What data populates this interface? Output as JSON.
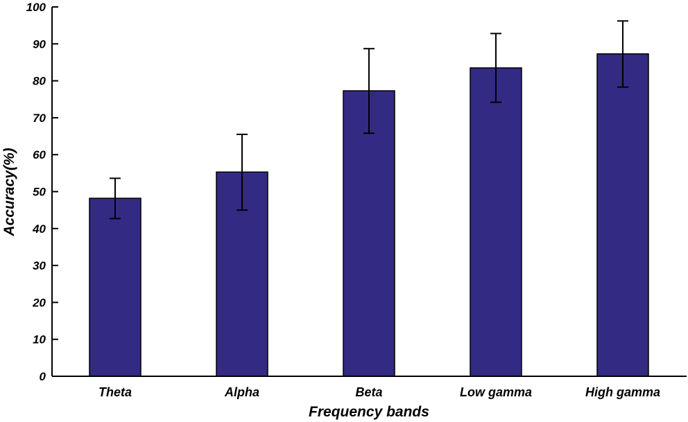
{
  "chart_data": {
    "type": "bar",
    "xlabel": "Frequency bands",
    "ylabel": "Accuracy(%)",
    "ylim": [
      0,
      100
    ],
    "yticks": [
      0,
      10,
      20,
      30,
      40,
      50,
      60,
      70,
      80,
      90,
      100
    ],
    "categories": [
      "Theta",
      "Alpha",
      "Beta",
      "Low gamma",
      "High gamma"
    ],
    "values": [
      48.2,
      55.3,
      77.3,
      83.5,
      87.3
    ],
    "error_low": [
      42.7,
      45.0,
      65.8,
      74.2,
      78.3
    ],
    "error_high": [
      53.6,
      65.5,
      88.7,
      92.8,
      96.2
    ],
    "bar_color": "#332a84",
    "grid": false
  }
}
